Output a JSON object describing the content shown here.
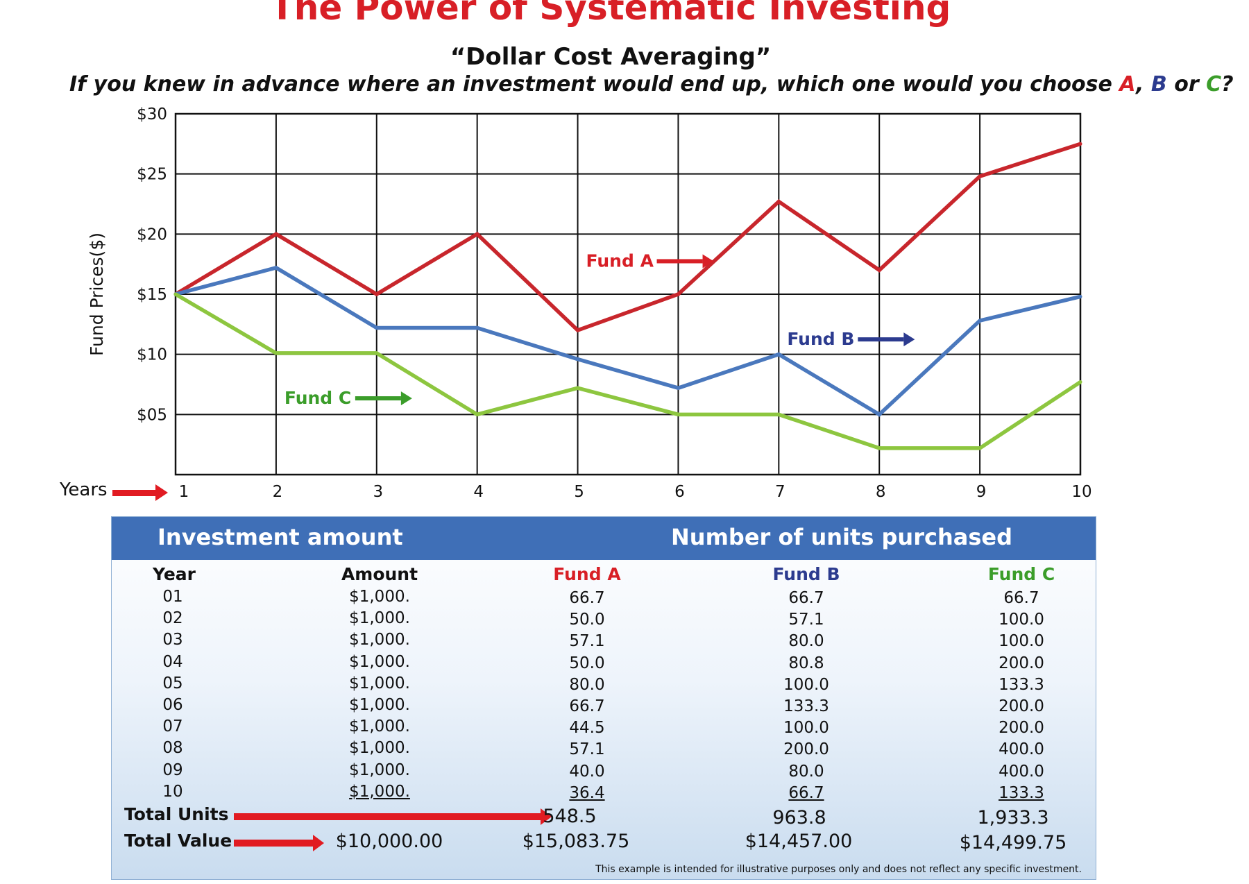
{
  "header": {
    "title": "The Power of Systematic Investing",
    "subtitle": "“Dollar Cost Averaging”",
    "question_text": "If you knew in advance where an investment would end up, which one would you choose",
    "option_a": "A",
    "sep1": ",",
    "option_b": "B",
    "or_word": "or",
    "option_c": "C",
    "qmark": "?"
  },
  "chart_data": {
    "type": "line",
    "ylabel": "Fund Prices($)",
    "xlabel": "Years",
    "x": [
      1,
      2,
      3,
      4,
      5,
      6,
      7,
      8,
      9,
      10
    ],
    "ylim": [
      0,
      30
    ],
    "y_tick_labels": [
      "$05",
      "$10",
      "$15",
      "$20",
      "$25",
      "$30"
    ],
    "y_tick_values": [
      5,
      10,
      15,
      20,
      25,
      30
    ],
    "grid": true,
    "series": [
      {
        "name": "Fund A",
        "color": "#c8262c",
        "values": [
          15,
          20,
          15,
          20,
          12,
          15,
          22.7,
          17,
          24.8,
          27.5
        ]
      },
      {
        "name": "Fund B",
        "color": "#4a78bd",
        "values": [
          15,
          17.2,
          12.2,
          12.2,
          9.6,
          7.2,
          10,
          5,
          12.8,
          14.8
        ]
      },
      {
        "name": "Fund C",
        "color": "#8dc63f",
        "values": [
          15,
          10.1,
          10.1,
          5,
          7.2,
          5,
          5,
          2.2,
          2.2,
          7.7
        ]
      }
    ],
    "annotations": [
      {
        "text": "Fund A",
        "color": "#d81f26",
        "at_year": 5,
        "at_value": 17.8
      },
      {
        "text": "Fund B",
        "color": "#2c3b8f",
        "at_year": 7,
        "at_value": 11.3
      },
      {
        "text": "Fund C",
        "color": "#3b9d2a",
        "at_year": 2,
        "at_value": 6.4
      }
    ]
  },
  "table": {
    "left_heading": "Investment amount",
    "right_heading": "Number of units purchased",
    "columns": [
      "Year",
      "Amount",
      "Fund A",
      "Fund B",
      "Fund C"
    ],
    "rows": [
      [
        "01",
        "$1,000.",
        "66.7",
        "66.7",
        "66.7"
      ],
      [
        "02",
        "$1,000.",
        "50.0",
        "57.1",
        "100.0"
      ],
      [
        "03",
        "$1,000.",
        "57.1",
        "80.0",
        "100.0"
      ],
      [
        "04",
        "$1,000.",
        "50.0",
        "80.8",
        "200.0"
      ],
      [
        "05",
        "$1,000.",
        "80.0",
        "100.0",
        "133.3"
      ],
      [
        "06",
        "$1,000.",
        "66.7",
        "133.3",
        "200.0"
      ],
      [
        "07",
        "$1,000.",
        "44.5",
        "100.0",
        "200.0"
      ],
      [
        "08",
        "$1,000.",
        "57.1",
        "200.0",
        "400.0"
      ],
      [
        "09",
        "$1,000.",
        "40.0",
        "80.0",
        "400.0"
      ],
      [
        "10",
        "$1,000.",
        "36.4",
        "66.7",
        "133.3"
      ]
    ],
    "total_units_label": "Total Units",
    "total_units": {
      "fund_a": "548.5",
      "fund_b": "963.8",
      "fund_c": "1,933.3"
    },
    "total_value_label": "Total Value",
    "total_value": {
      "amount": "$10,000.00",
      "fund_a": "$15,083.75",
      "fund_b": "$14,457.00",
      "fund_c": "$14,499.75"
    },
    "disclaimer": "This example is intended for illustrative purposes only and does not reflect any specific investment."
  },
  "colors": {
    "fund_a": "#d81f26",
    "fund_b": "#2c3b8f",
    "fund_c": "#3b9d2a",
    "accent": "#3f6fb7",
    "arrow": "#e11b22"
  }
}
